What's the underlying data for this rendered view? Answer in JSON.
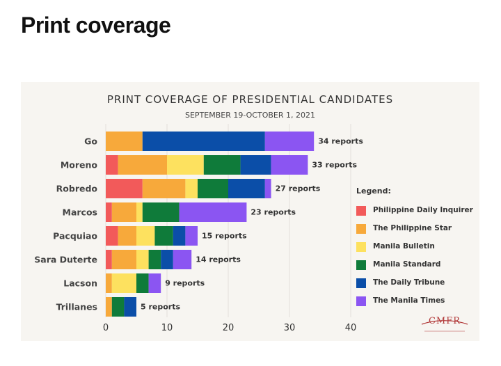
{
  "page": {
    "heading": "Print coverage"
  },
  "chart_data": {
    "type": "bar",
    "orientation": "horizontal",
    "stacked": true,
    "title": "PRINT COVERAGE OF PRESIDENTIAL CANDIDATES",
    "subtitle": "SEPTEMBER 19-OCTOBER 1, 2021",
    "xlabel": "",
    "ylabel": "",
    "xlim": [
      0,
      40
    ],
    "xticks": [
      0,
      10,
      20,
      30,
      40
    ],
    "grid": true,
    "categories": [
      "Go",
      "Moreno",
      "Robredo",
      "Marcos",
      "Pacquiao",
      "Sara Duterte",
      "Lacson",
      "Trillanes"
    ],
    "series": [
      {
        "name": "Philippine Daily Inquirer",
        "color": "#f25a5a",
        "values": [
          0,
          2,
          6,
          1,
          2,
          1,
          0,
          0
        ]
      },
      {
        "name": "The Philippine Star",
        "color": "#f7a93b",
        "values": [
          6,
          8,
          7,
          4,
          3,
          4,
          1,
          1
        ]
      },
      {
        "name": "Manila Bulletin",
        "color": "#fde15f",
        "values": [
          0,
          6,
          2,
          1,
          3,
          2,
          4,
          0
        ]
      },
      {
        "name": "Manila Standard",
        "color": "#0f7b3a",
        "values": [
          0,
          6,
          5,
          6,
          3,
          2,
          2,
          2
        ]
      },
      {
        "name": "The Daily Tribune",
        "color": "#0b4ea8",
        "values": [
          20,
          5,
          6,
          0,
          2,
          2,
          0,
          2
        ]
      },
      {
        "name": "The Manila Times",
        "color": "#8b55f2",
        "values": [
          8,
          6,
          1,
          11,
          2,
          3,
          2,
          0
        ]
      }
    ],
    "totals": [
      34,
      33,
      27,
      23,
      15,
      14,
      9,
      5
    ],
    "total_labels": [
      "34 reports",
      "33 reports",
      "27 reports",
      "23 reports",
      "15 reports",
      "14 reports",
      "9 reports",
      "5 reports"
    ],
    "legend": {
      "title": "Legend:",
      "placement": "right"
    }
  },
  "logo": {
    "text": "CMFR"
  }
}
